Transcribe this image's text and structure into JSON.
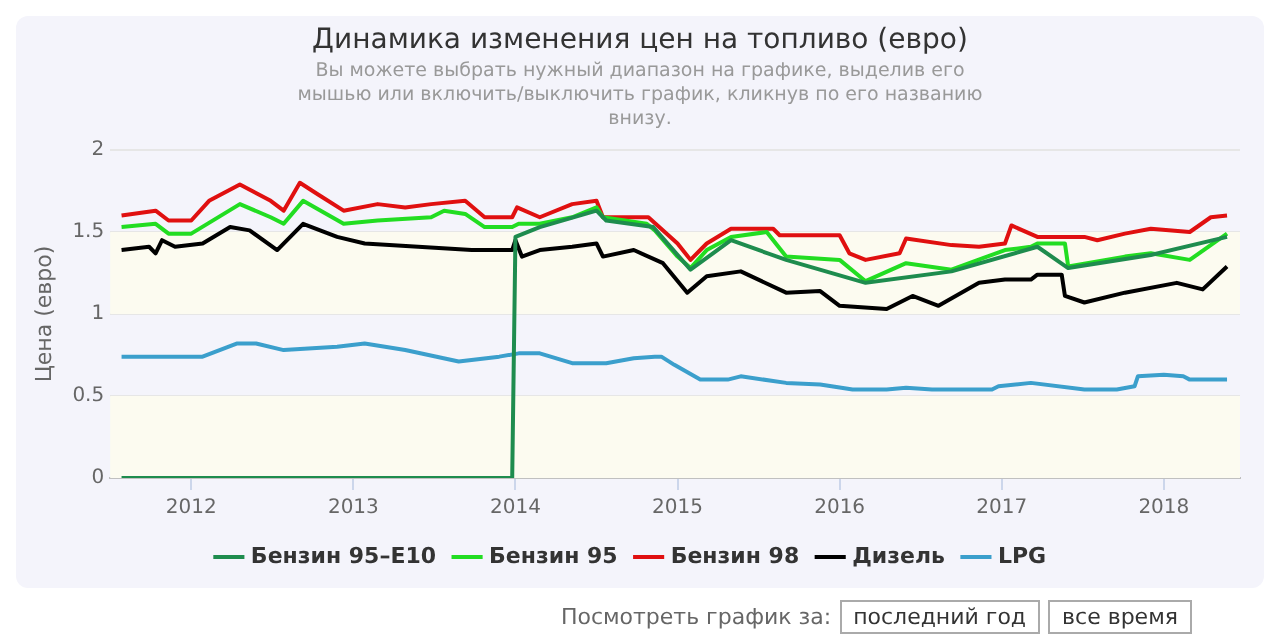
{
  "chart_data": {
    "type": "line",
    "title": "Динамика изменения цен на топливо (евро)",
    "subtitle": "Вы можете выбрать нужный диапазон на графике, выделив его мышью или включить/выключить график, кликнув по его названию внизу.",
    "ylabel": "Цена (евро)",
    "xlim": [
      2011.5,
      2018.47
    ],
    "xticks": [
      2012,
      2013,
      2014,
      2015,
      2016,
      2017,
      2018
    ],
    "ylim": [
      0,
      2
    ],
    "yticks": [
      0,
      0.5,
      1,
      1.5,
      2
    ],
    "grid": "y",
    "legend": "bottom",
    "marker": "none",
    "line_style": "solid",
    "bands": [
      {
        "axis": "y",
        "from": 0,
        "to": 0.5,
        "color": "#fcfbf0"
      },
      {
        "axis": "y",
        "from": 1,
        "to": 1.5,
        "color": "#fcfbf0"
      }
    ],
    "annotations": [
      "Посмотреть график за:",
      "последний год",
      "все время"
    ],
    "series": [
      {
        "name": "Бензин 95–E10",
        "color": "#1e8c4e",
        "x": [
          2011.57,
          2013.98,
          2014.0,
          2014.15,
          2014.5,
          2014.56,
          2014.85,
          2015.08,
          2015.33,
          2015.67,
          2016.16,
          2016.69,
          2017.22,
          2017.41,
          2017.92,
          2018.39
        ],
        "values": [
          0,
          0,
          1.47,
          1.53,
          1.63,
          1.57,
          1.53,
          1.27,
          1.45,
          1.33,
          1.19,
          1.26,
          1.41,
          1.28,
          1.36,
          1.47
        ]
      },
      {
        "name": "Бензин 95",
        "color": "#22dd22",
        "x": [
          2011.57,
          2011.78,
          2011.86,
          2012.0,
          2012.3,
          2012.49,
          2012.57,
          2012.69,
          2012.94,
          2013.15,
          2013.48,
          2013.56,
          2013.69,
          2013.81,
          2013.98,
          2014.02,
          2014.15,
          2014.35,
          2014.5,
          2014.54,
          2014.81,
          2014.86,
          2015.0,
          2015.08,
          2015.18,
          2015.33,
          2015.55,
          2015.67,
          2016.0,
          2016.16,
          2016.41,
          2016.69,
          2017.02,
          2017.18,
          2017.22,
          2017.39,
          2017.41,
          2017.76,
          2017.92,
          2018.16,
          2018.39
        ],
        "values": [
          1.53,
          1.55,
          1.49,
          1.49,
          1.67,
          1.59,
          1.55,
          1.69,
          1.55,
          1.57,
          1.59,
          1.63,
          1.61,
          1.53,
          1.53,
          1.55,
          1.55,
          1.59,
          1.65,
          1.59,
          1.55,
          1.51,
          1.35,
          1.28,
          1.39,
          1.47,
          1.5,
          1.35,
          1.33,
          1.2,
          1.31,
          1.27,
          1.39,
          1.41,
          1.43,
          1.43,
          1.29,
          1.35,
          1.37,
          1.33,
          1.49
        ]
      },
      {
        "name": "Бензин 98",
        "color": "#e01010",
        "x": [
          2011.57,
          2011.78,
          2011.86,
          2012.0,
          2012.11,
          2012.3,
          2012.49,
          2012.57,
          2012.67,
          2012.78,
          2012.94,
          2013.15,
          2013.32,
          2013.48,
          2013.69,
          2013.81,
          2013.98,
          2014.01,
          2014.15,
          2014.35,
          2014.5,
          2014.54,
          2014.82,
          2015.0,
          2015.08,
          2015.18,
          2015.33,
          2015.59,
          2015.63,
          2016.0,
          2016.06,
          2016.16,
          2016.37,
          2016.41,
          2016.69,
          2016.86,
          2017.02,
          2017.06,
          2017.22,
          2017.51,
          2017.59,
          2017.76,
          2017.92,
          2018.16,
          2018.29,
          2018.39
        ],
        "values": [
          1.6,
          1.63,
          1.57,
          1.57,
          1.69,
          1.79,
          1.69,
          1.63,
          1.8,
          1.73,
          1.63,
          1.67,
          1.65,
          1.67,
          1.69,
          1.59,
          1.59,
          1.65,
          1.59,
          1.67,
          1.69,
          1.59,
          1.59,
          1.43,
          1.33,
          1.43,
          1.52,
          1.52,
          1.48,
          1.48,
          1.37,
          1.33,
          1.37,
          1.46,
          1.42,
          1.41,
          1.43,
          1.54,
          1.47,
          1.47,
          1.45,
          1.49,
          1.52,
          1.5,
          1.59,
          1.6
        ]
      },
      {
        "name": "Дизель",
        "color": "#000000",
        "x": [
          2011.57,
          2011.74,
          2011.78,
          2011.82,
          2011.9,
          2012.07,
          2012.24,
          2012.36,
          2012.53,
          2012.69,
          2012.9,
          2013.07,
          2013.4,
          2013.73,
          2013.98,
          2014.0,
          2014.04,
          2014.15,
          2014.35,
          2014.5,
          2014.54,
          2014.73,
          2014.91,
          2015.06,
          2015.18,
          2015.39,
          2015.67,
          2015.88,
          2016.0,
          2016.29,
          2016.45,
          2016.61,
          2016.86,
          2017.02,
          2017.18,
          2017.22,
          2017.37,
          2017.39,
          2017.51,
          2017.76,
          2018.08,
          2018.24,
          2018.39
        ],
        "values": [
          1.39,
          1.41,
          1.37,
          1.45,
          1.41,
          1.43,
          1.53,
          1.51,
          1.39,
          1.55,
          1.47,
          1.43,
          1.41,
          1.39,
          1.39,
          1.45,
          1.35,
          1.39,
          1.41,
          1.43,
          1.35,
          1.39,
          1.31,
          1.13,
          1.23,
          1.26,
          1.13,
          1.14,
          1.05,
          1.03,
          1.11,
          1.05,
          1.19,
          1.21,
          1.21,
          1.24,
          1.24,
          1.11,
          1.07,
          1.13,
          1.19,
          1.15,
          1.29
        ]
      },
      {
        "name": "LPG",
        "color": "#3b9fcc",
        "x": [
          2011.57,
          2012.07,
          2012.28,
          2012.4,
          2012.57,
          2012.9,
          2013.07,
          2013.32,
          2013.65,
          2013.9,
          2014.02,
          2014.15,
          2014.35,
          2014.56,
          2014.73,
          2014.86,
          2014.9,
          2014.98,
          2015.14,
          2015.31,
          2015.39,
          2015.67,
          2015.88,
          2016.08,
          2016.29,
          2016.41,
          2016.57,
          2016.94,
          2016.98,
          2017.18,
          2017.51,
          2017.71,
          2017.82,
          2017.84,
          2018.0,
          2018.12,
          2018.16,
          2018.39
        ],
        "values": [
          0.74,
          0.74,
          0.82,
          0.82,
          0.78,
          0.8,
          0.82,
          0.78,
          0.71,
          0.74,
          0.76,
          0.76,
          0.7,
          0.7,
          0.73,
          0.74,
          0.74,
          0.69,
          0.6,
          0.6,
          0.62,
          0.58,
          0.57,
          0.54,
          0.54,
          0.55,
          0.54,
          0.54,
          0.56,
          0.58,
          0.54,
          0.54,
          0.56,
          0.62,
          0.63,
          0.62,
          0.6,
          0.6
        ]
      }
    ]
  }
}
